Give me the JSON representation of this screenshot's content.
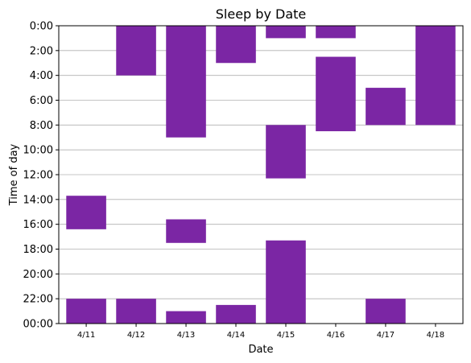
{
  "chart_data": {
    "type": "bar",
    "subtype": "floating-range",
    "title": "Sleep by Date",
    "xlabel": "Date",
    "ylabel": "Time of day",
    "categories": [
      "4/11",
      "4/12",
      "4/13",
      "4/14",
      "4/15",
      "4/16",
      "4/17",
      "4/18"
    ],
    "y_ticks": [
      {
        "value": 0,
        "label": "0:00"
      },
      {
        "value": 2,
        "label": "2:00"
      },
      {
        "value": 4,
        "label": "4:00"
      },
      {
        "value": 6,
        "label": "6:00"
      },
      {
        "value": 8,
        "label": "8:00"
      },
      {
        "value": 10,
        "label": "10:00"
      },
      {
        "value": 12,
        "label": "12:00"
      },
      {
        "value": 14,
        "label": "14:00"
      },
      {
        "value": 16,
        "label": "16:00"
      },
      {
        "value": 18,
        "label": "18:00"
      },
      {
        "value": 20,
        "label": "20:00"
      },
      {
        "value": 22,
        "label": "22:00"
      },
      {
        "value": 24,
        "label": "00:00"
      }
    ],
    "ylim": [
      0,
      24
    ],
    "y_inverted": true,
    "grid": "horizontal",
    "color": "#7b26a4",
    "sleep_periods": [
      {
        "date": "4/11",
        "start": 13.7,
        "end": 16.4
      },
      {
        "date": "4/11",
        "start": 22.0,
        "end": 24.0
      },
      {
        "date": "4/12",
        "start": 0.0,
        "end": 4.0
      },
      {
        "date": "4/12",
        "start": 22.0,
        "end": 24.0
      },
      {
        "date": "4/13",
        "start": 0.0,
        "end": 9.0
      },
      {
        "date": "4/13",
        "start": 15.6,
        "end": 17.5
      },
      {
        "date": "4/13",
        "start": 23.0,
        "end": 24.0
      },
      {
        "date": "4/14",
        "start": 0.0,
        "end": 3.0
      },
      {
        "date": "4/14",
        "start": 22.5,
        "end": 24.0
      },
      {
        "date": "4/15",
        "start": 0.0,
        "end": 1.0
      },
      {
        "date": "4/15",
        "start": 8.0,
        "end": 12.3
      },
      {
        "date": "4/15",
        "start": 17.3,
        "end": 24.0
      },
      {
        "date": "4/16",
        "start": 0.0,
        "end": 1.0
      },
      {
        "date": "4/16",
        "start": 2.5,
        "end": 8.5
      },
      {
        "date": "4/17",
        "start": 5.0,
        "end": 8.0
      },
      {
        "date": "4/17",
        "start": 22.0,
        "end": 24.0
      },
      {
        "date": "4/18",
        "start": 0.0,
        "end": 8.0
      }
    ]
  }
}
